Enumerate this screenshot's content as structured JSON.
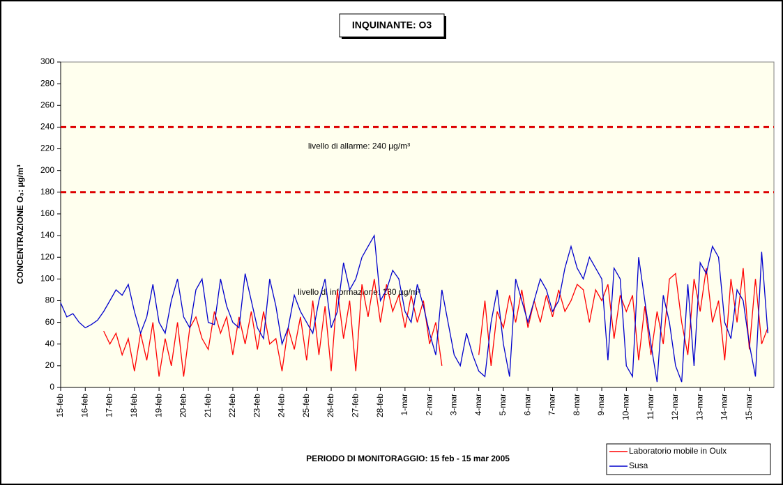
{
  "chart_data": {
    "type": "line",
    "title": "INQUINANTE: O3",
    "y_label": "CONCENTRAZIONE O₃: µg/m³",
    "x_label": "PERIODO DI MONITORAGGIO: 15 feb - 15 mar 2005",
    "categories": [
      "15-feb",
      null,
      null,
      null,
      "16-feb",
      null,
      null,
      null,
      "17-feb",
      null,
      null,
      null,
      "18-feb",
      null,
      null,
      null,
      "19-feb",
      null,
      null,
      null,
      "20-feb",
      null,
      null,
      null,
      "21-feb",
      null,
      null,
      null,
      "22-feb",
      null,
      null,
      null,
      "23-feb",
      null,
      null,
      null,
      "24-feb",
      null,
      null,
      null,
      "25-feb",
      null,
      null,
      null,
      "26-feb",
      null,
      null,
      null,
      "27-feb",
      null,
      null,
      null,
      "28-feb",
      null,
      null,
      null,
      "1-mar",
      null,
      null,
      null,
      "2-mar",
      null,
      null,
      null,
      "3-mar",
      null,
      null,
      null,
      "4-mar",
      null,
      null,
      null,
      "5-mar",
      null,
      null,
      null,
      "6-mar",
      null,
      null,
      null,
      "7-mar",
      null,
      null,
      null,
      "8-mar",
      null,
      null,
      null,
      "9-mar",
      null,
      null,
      null,
      "10-mar",
      null,
      null,
      null,
      "11-mar",
      null,
      null,
      null,
      "12-mar",
      null,
      null,
      null,
      "13-mar",
      null,
      null,
      null,
      "14-mar",
      null,
      null,
      null,
      "15-mar",
      null,
      null,
      null
    ],
    "series": [
      {
        "name": "Laboratorio mobile in Oulx",
        "color": "#ff0000",
        "values": [
          null,
          null,
          null,
          null,
          null,
          null,
          null,
          52,
          40,
          50,
          30,
          45,
          15,
          50,
          25,
          60,
          10,
          45,
          20,
          60,
          10,
          55,
          65,
          45,
          35,
          70,
          50,
          65,
          30,
          65,
          40,
          70,
          35,
          70,
          40,
          45,
          15,
          55,
          35,
          65,
          25,
          80,
          30,
          75,
          15,
          90,
          45,
          80,
          15,
          95,
          65,
          100,
          60,
          95,
          70,
          85,
          55,
          85,
          60,
          80,
          40,
          60,
          20,
          null,
          null,
          null,
          null,
          null,
          30,
          80,
          20,
          70,
          55,
          85,
          60,
          90,
          55,
          80,
          60,
          85,
          65,
          90,
          70,
          80,
          95,
          90,
          60,
          90,
          80,
          95,
          45,
          85,
          70,
          85,
          25,
          75,
          30,
          70,
          40,
          100,
          105,
          60,
          30,
          100,
          70,
          110,
          60,
          80,
          25,
          100,
          60,
          110,
          35,
          100,
          40,
          55
        ]
      },
      {
        "name": "Susa",
        "color": "#0000cc",
        "values": [
          78,
          65,
          68,
          60,
          55,
          58,
          62,
          70,
          80,
          90,
          85,
          95,
          70,
          50,
          65,
          95,
          60,
          50,
          80,
          100,
          65,
          55,
          90,
          100,
          60,
          58,
          100,
          75,
          60,
          55,
          105,
          80,
          55,
          45,
          100,
          75,
          40,
          55,
          85,
          70,
          60,
          50,
          80,
          100,
          55,
          70,
          115,
          90,
          100,
          120,
          130,
          140,
          80,
          90,
          108,
          100,
          70,
          60,
          95,
          75,
          50,
          30,
          90,
          60,
          30,
          20,
          50,
          30,
          15,
          10,
          60,
          90,
          40,
          10,
          100,
          80,
          60,
          80,
          100,
          90,
          70,
          80,
          110,
          130,
          110,
          100,
          120,
          110,
          100,
          25,
          110,
          100,
          20,
          10,
          120,
          80,
          40,
          5,
          85,
          60,
          20,
          5,
          95,
          20,
          115,
          105,
          130,
          120,
          60,
          45,
          90,
          80,
          40,
          10,
          125,
          50
        ]
      }
    ],
    "reference_lines": [
      {
        "value": 240,
        "label": "livello di allarme: 240 µg/m³",
        "color": "#dd0000"
      },
      {
        "value": 180,
        "label": "livello di informazione: 180 µg/m³",
        "color": "#dd0000"
      }
    ],
    "ylim": [
      0,
      300
    ],
    "yticks": [
      0,
      20,
      40,
      60,
      80,
      100,
      120,
      140,
      160,
      180,
      200,
      220,
      240,
      260,
      280,
      300
    ],
    "grid": false,
    "legend": "bottom-right"
  }
}
